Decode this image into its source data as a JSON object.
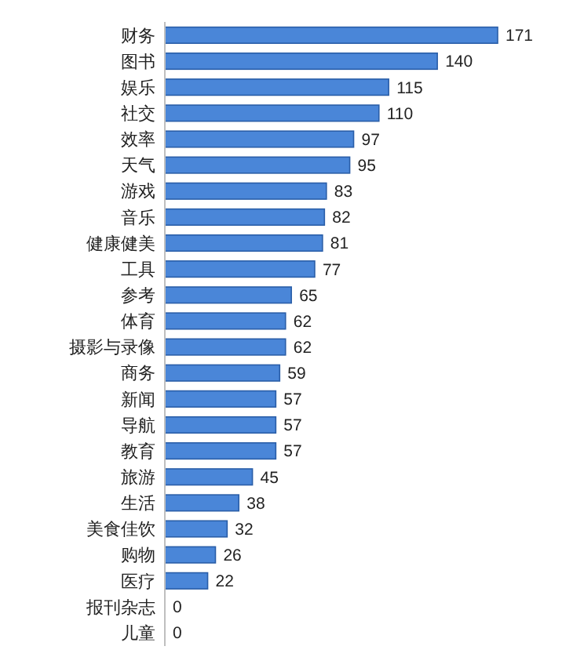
{
  "chart_data": {
    "type": "bar",
    "orientation": "horizontal",
    "data_labels": true,
    "color": "#4a86d8",
    "categories": [
      "财务",
      "图书",
      "娱乐",
      "社交",
      "效率",
      "天气",
      "游戏",
      "音乐",
      "健康健美",
      "工具",
      "参考",
      "体育",
      "摄影与录像",
      "商务",
      "新闻",
      "导航",
      "教育",
      "旅游",
      "生活",
      "美食佳饮",
      "购物",
      "医疗",
      "报刊杂志",
      "儿童"
    ],
    "values": [
      171,
      140,
      115,
      110,
      97,
      95,
      83,
      82,
      81,
      77,
      65,
      62,
      62,
      59,
      57,
      57,
      57,
      45,
      38,
      32,
      26,
      22,
      0,
      0
    ]
  }
}
